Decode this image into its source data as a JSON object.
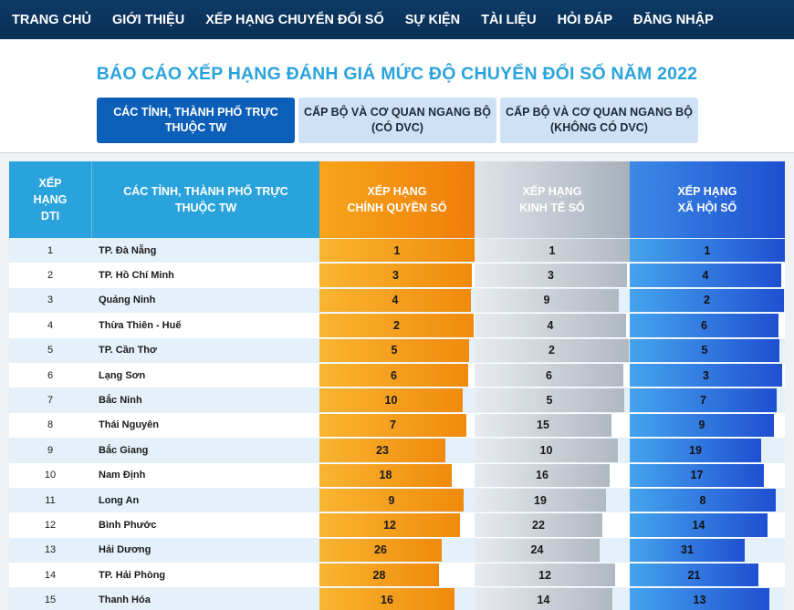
{
  "nav": {
    "items": [
      "TRANG CHỦ",
      "GIỚI THIỆU",
      "XẾP HẠNG CHUYỂN ĐỔI SỐ",
      "SỰ KIỆN",
      "TÀI LIỆU",
      "HỎI ĐÁP",
      "ĐĂNG NHẬP"
    ]
  },
  "page": {
    "title": "BÁO CÁO XẾP HẠNG ĐÁNH GIÁ MỨC ĐỘ CHUYỂN ĐỔI SỐ NĂM 2022"
  },
  "tabs": [
    {
      "label": "CÁC TỈNH, THÀNH PHỐ TRỰC\nTHUỘC TW",
      "active": true
    },
    {
      "label": "CẤP BỘ VÀ CƠ QUAN NGANG BỘ\n(CÓ DVC)",
      "active": false
    },
    {
      "label": "CẤP BỘ VÀ CƠ QUAN NGANG BỘ\n(KHÔNG CÓ DVC)",
      "active": false
    }
  ],
  "table": {
    "headers": {
      "rank": "XẾP\nHẠNG\nDTI",
      "name": "CÁC TỈNH, THÀNH PHỐ TRỰC\nTHUỘC TW",
      "cq": "XẾP HẠNG\nCHÍNH QUYỀN SỐ",
      "kt": "XẾP HẠNG\nKINH TẾ SỐ",
      "xh": "XẾP HẠNG\nXÃ HỘI SỐ"
    },
    "rows": [
      {
        "rank": "1",
        "name": "TP. Đà Nẵng",
        "cq": 1,
        "kt": 1,
        "xh": 1
      },
      {
        "rank": "2",
        "name": "TP. Hồ Chí Minh",
        "cq": 3,
        "kt": 3,
        "xh": 4
      },
      {
        "rank": "3",
        "name": "Quảng Ninh",
        "cq": 4,
        "kt": 9,
        "xh": 2
      },
      {
        "rank": "4",
        "name": "Thừa Thiên - Huế",
        "cq": 2,
        "kt": 4,
        "xh": 6
      },
      {
        "rank": "5",
        "name": "TP. Cần Thơ",
        "cq": 5,
        "kt": 2,
        "xh": 5
      },
      {
        "rank": "6",
        "name": "Lạng Sơn",
        "cq": 6,
        "kt": 6,
        "xh": 3
      },
      {
        "rank": "7",
        "name": "Bắc Ninh",
        "cq": 10,
        "kt": 5,
        "xh": 7
      },
      {
        "rank": "8",
        "name": "Thái Nguyên",
        "cq": 7,
        "kt": 15,
        "xh": 9
      },
      {
        "rank": "9",
        "name": "Bắc Giang",
        "cq": 23,
        "kt": 10,
        "xh": 19
      },
      {
        "rank": "10",
        "name": "Nam Định",
        "cq": 18,
        "kt": 16,
        "xh": 17
      },
      {
        "rank": "11",
        "name": "Long An",
        "cq": 9,
        "kt": 19,
        "xh": 8
      },
      {
        "rank": "12",
        "name": "Bình Phước",
        "cq": 12,
        "kt": 22,
        "xh": 14
      },
      {
        "rank": "13",
        "name": "Hải Dương",
        "cq": 26,
        "kt": 24,
        "xh": 31
      },
      {
        "rank": "14",
        "name": "TP. Hải Phòng",
        "cq": 28,
        "kt": 12,
        "xh": 21
      },
      {
        "rank": "15",
        "name": "Thanh Hóa",
        "cq": 16,
        "kt": 14,
        "xh": 13
      }
    ]
  },
  "colors": {
    "nav_bg": "#0c3a66",
    "title": "#2aa3dc",
    "tab_active": "#0c5fb8",
    "tab_inactive": "#cfe2f5",
    "cq": "#f08a0c",
    "kt": "#b0b8c2",
    "xh": "#1f4fd1"
  }
}
